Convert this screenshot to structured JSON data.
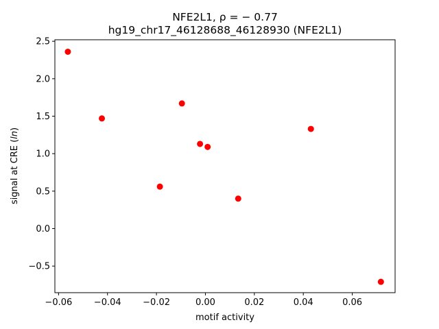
{
  "chart_data": {
    "type": "scatter",
    "title": "NFE2L1, ρ = − 0.77",
    "subtitle": "hg19_chr17_46128688_46128930 (NFE2L1)",
    "xlabel": "motif activity",
    "ylabel": "signal at CRE (ln)",
    "xlim": [
      -0.0615,
      0.0775
    ],
    "ylim": [
      -0.855,
      2.52
    ],
    "xticks": [
      -0.06,
      -0.04,
      -0.02,
      0.0,
      0.02,
      0.04,
      0.06
    ],
    "xtick_labels": [
      "−0.06",
      "−0.04",
      "−0.02",
      "0.00",
      "0.02",
      "0.04",
      "0.06"
    ],
    "yticks": [
      -0.5,
      0.0,
      0.5,
      1.0,
      1.5,
      2.0,
      2.5
    ],
    "ytick_labels": [
      "−0.5",
      "0.0",
      "0.5",
      "1.0",
      "1.5",
      "2.0",
      "2.5"
    ],
    "grid": false,
    "marker_color": "#ff0000",
    "points": [
      {
        "x": -0.0562,
        "y": 2.36
      },
      {
        "x": -0.0423,
        "y": 1.47
      },
      {
        "x": -0.0186,
        "y": 0.56
      },
      {
        "x": -0.0096,
        "y": 1.67
      },
      {
        "x": -0.0022,
        "y": 1.13
      },
      {
        "x": 0.0009,
        "y": 1.09
      },
      {
        "x": 0.0134,
        "y": 0.4
      },
      {
        "x": 0.0431,
        "y": 1.33
      },
      {
        "x": 0.0717,
        "y": -0.71
      }
    ]
  }
}
